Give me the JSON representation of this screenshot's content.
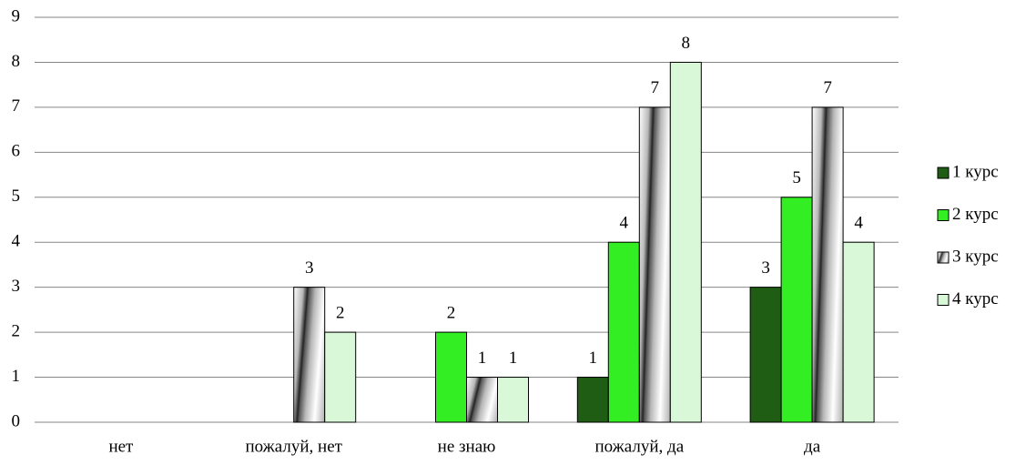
{
  "chart_data": {
    "type": "bar",
    "categories": [
      "нет",
      "пожалуй, нет",
      "не знаю",
      "пожалуй, да",
      "да"
    ],
    "series": [
      {
        "name": "1 курс",
        "color": "#1f5c14",
        "values": [
          null,
          null,
          null,
          1,
          3
        ]
      },
      {
        "name": "2 курс",
        "color": "#33ee22",
        "values": [
          null,
          null,
          2,
          4,
          5
        ]
      },
      {
        "name": "3 курс",
        "color": "#b8b8b8",
        "values": [
          null,
          3,
          1,
          7,
          7
        ]
      },
      {
        "name": "4 курс",
        "color": "#d8f8d8",
        "values": [
          null,
          2,
          1,
          8,
          4
        ]
      }
    ],
    "ylim": [
      0,
      9
    ],
    "yticks": [
      0,
      1,
      2,
      3,
      4,
      5,
      6,
      7,
      8,
      9
    ],
    "grid": true,
    "legend": "right"
  }
}
